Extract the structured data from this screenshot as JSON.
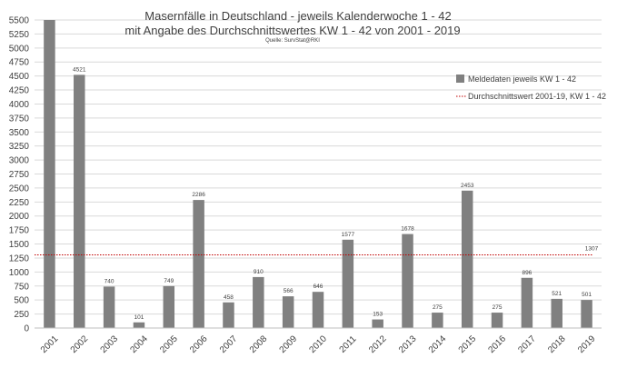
{
  "chart_data": {
    "type": "bar",
    "title_line1": "Masernfälle in Deutschland - jeweils Kalenderwoche 1 - 42",
    "title_line2": "mit Angabe des Durchschnittswertes KW 1 - 42 von 2001 - 2019",
    "source": "Quelle: SurvStat@RKI",
    "categories": [
      "2001",
      "2002",
      "2003",
      "2004",
      "2005",
      "2006",
      "2007",
      "2008",
      "2009",
      "2010",
      "2011",
      "2012",
      "2013",
      "2014",
      "2015",
      "2016",
      "2017",
      "2018",
      "2019"
    ],
    "series": [
      {
        "name": "Meldedaten jeweils KW 1 - 42",
        "values": [
          5520,
          4521,
          740,
          101,
          749,
          2286,
          458,
          910,
          566,
          646,
          1577,
          153,
          1678,
          275,
          2453,
          275,
          896,
          521,
          501
        ],
        "labels": [
          "",
          "4521",
          "740",
          "101",
          "749",
          "2286",
          "458",
          "910",
          "566",
          "646",
          "1577",
          "153",
          "1678",
          "275",
          "2453",
          "275",
          "896",
          "521",
          "501"
        ],
        "color": "#808080"
      }
    ],
    "reference_line": {
      "name": "Durchschnittswert 2001-19, KW 1 - 42",
      "value": 1307,
      "label": "1307",
      "color": "#c00000"
    },
    "ylim": [
      0,
      5500
    ],
    "yticks": [
      "0",
      "250",
      "500",
      "750",
      "1000",
      "1250",
      "1500",
      "1750",
      "2000",
      "2250",
      "2500",
      "2750",
      "3000",
      "3250",
      "3500",
      "3750",
      "4000",
      "4250",
      "4500",
      "4750",
      "5000",
      "5250",
      "5500"
    ],
    "ytick_values": [
      0,
      250,
      500,
      750,
      1000,
      1250,
      1500,
      1750,
      2000,
      2250,
      2500,
      2750,
      3000,
      3250,
      3500,
      3750,
      4000,
      4250,
      4500,
      4750,
      5000,
      5250,
      5500
    ],
    "grid": true,
    "grid_color": "#d9d9d9",
    "axis_color": "#bfbfbf",
    "legend_position": "right"
  }
}
